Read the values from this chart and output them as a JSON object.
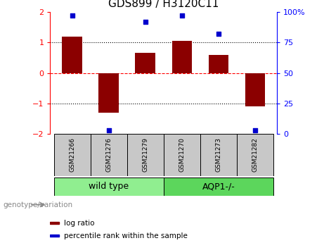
{
  "title": "GDS899 / H3120C11",
  "samples": [
    "GSM21266",
    "GSM21276",
    "GSM21279",
    "GSM21270",
    "GSM21273",
    "GSM21282"
  ],
  "log_ratios": [
    1.2,
    -1.3,
    0.65,
    1.05,
    0.6,
    -1.1
  ],
  "percentile_ranks": [
    97,
    3,
    92,
    97,
    82,
    3
  ],
  "bar_color": "#8B0000",
  "dot_color": "#0000CD",
  "ylim_left": [
    -2,
    2
  ],
  "ylim_right": [
    0,
    100
  ],
  "yticks_left": [
    -2,
    -1,
    0,
    1,
    2
  ],
  "yticks_right": [
    0,
    25,
    50,
    75,
    100
  ],
  "ytick_labels_right": [
    "0",
    "25",
    "50",
    "75",
    "100%"
  ],
  "hlines": [
    -1,
    0,
    1
  ],
  "hline_styles": [
    "dotted",
    "dashed",
    "dotted"
  ],
  "hline_colors": [
    "black",
    "red",
    "black"
  ],
  "groups": [
    {
      "label": "wild type",
      "color": "#90EE90",
      "start": 0,
      "end": 3
    },
    {
      "label": "AQP1-/-",
      "color": "#5CD65C",
      "start": 3,
      "end": 6
    }
  ],
  "genotype_label": "genotype/variation",
  "legend_items": [
    {
      "color": "#8B0000",
      "label": "log ratio"
    },
    {
      "color": "#0000CD",
      "label": "percentile rank within the sample"
    }
  ],
  "bar_width": 0.55,
  "title_fontsize": 11,
  "tick_fontsize": 8,
  "sample_fontsize": 6.5,
  "group_fontsize": 9,
  "legend_fontsize": 7.5,
  "genotype_fontsize": 7.5
}
